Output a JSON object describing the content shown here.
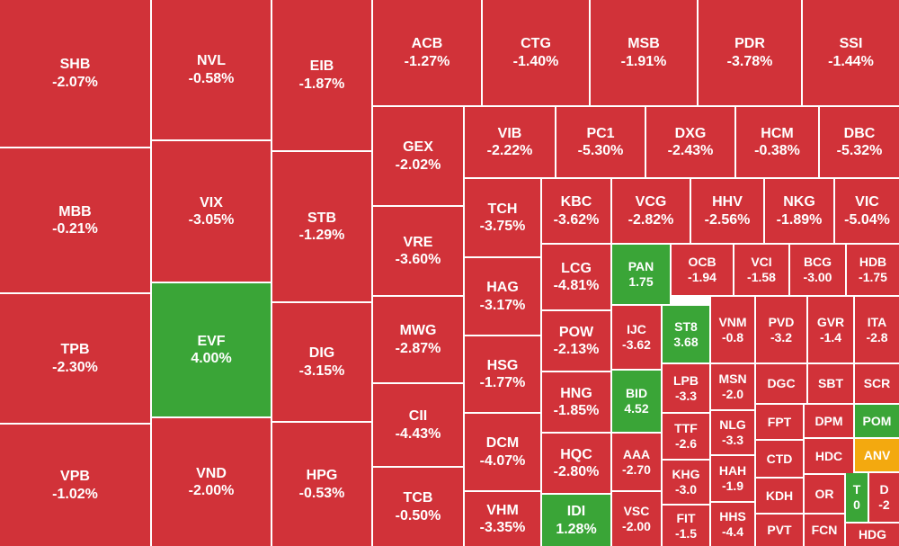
{
  "tiles": [
    {
      "ticker": "SHB",
      "change": "-2.07%"
    },
    {
      "ticker": "MBB",
      "change": "-0.21%"
    },
    {
      "ticker": "TPB",
      "change": "-2.30%"
    },
    {
      "ticker": "VPB",
      "change": "-1.02%"
    },
    {
      "ticker": "NVL",
      "change": "-0.58%"
    },
    {
      "ticker": "VIX",
      "change": "-3.05%"
    },
    {
      "ticker": "EVF",
      "change": "4.00%"
    },
    {
      "ticker": "VND",
      "change": "-2.00%"
    },
    {
      "ticker": "EIB",
      "change": "-1.87%"
    },
    {
      "ticker": "STB",
      "change": "-1.29%"
    },
    {
      "ticker": "DIG",
      "change": "-3.15%"
    },
    {
      "ticker": "HPG",
      "change": "-0.53%"
    },
    {
      "ticker": "ACB",
      "change": "-1.27%"
    },
    {
      "ticker": "CTG",
      "change": "-1.40%"
    },
    {
      "ticker": "MSB",
      "change": "-1.91%"
    },
    {
      "ticker": "PDR",
      "change": "-3.78%"
    },
    {
      "ticker": "SSI",
      "change": "-1.44%"
    },
    {
      "ticker": "GEX",
      "change": "-2.02%"
    },
    {
      "ticker": "VRE",
      "change": "-3.60%"
    },
    {
      "ticker": "MWG",
      "change": "-2.87%"
    },
    {
      "ticker": "CII",
      "change": "-4.43%"
    },
    {
      "ticker": "TCB",
      "change": "-0.50%"
    },
    {
      "ticker": "VIB",
      "change": "-2.22%"
    },
    {
      "ticker": "PC1",
      "change": "-5.30%"
    },
    {
      "ticker": "DXG",
      "change": "-2.43%"
    },
    {
      "ticker": "HCM",
      "change": "-0.38%"
    },
    {
      "ticker": "DBC",
      "change": "-5.32%"
    },
    {
      "ticker": "TCH",
      "change": "-3.75%"
    },
    {
      "ticker": "KBC",
      "change": "-3.62%"
    },
    {
      "ticker": "VCG",
      "change": "-2.82%"
    },
    {
      "ticker": "HHV",
      "change": "-2.56%"
    },
    {
      "ticker": "NKG",
      "change": "-1.89%"
    },
    {
      "ticker": "VIC",
      "change": "-5.04%"
    },
    {
      "ticker": "HAG",
      "change": "-3.17%"
    },
    {
      "ticker": "HSG",
      "change": "-1.77%"
    },
    {
      "ticker": "DCM",
      "change": "-4.07%"
    },
    {
      "ticker": "VHM",
      "change": "-3.35%"
    },
    {
      "ticker": "LCG",
      "change": "-4.81%"
    },
    {
      "ticker": "POW",
      "change": "-2.13%"
    },
    {
      "ticker": "HNG",
      "change": "-1.85%"
    },
    {
      "ticker": "HQC",
      "change": "-2.80%"
    },
    {
      "ticker": "IDI",
      "change": "1.28%"
    },
    {
      "ticker": "PAN",
      "change": "1.75"
    },
    {
      "ticker": "OCB",
      "change": "-1.94"
    },
    {
      "ticker": "VCI",
      "change": "-1.58"
    },
    {
      "ticker": "BCG",
      "change": "-3.00"
    },
    {
      "ticker": "HDB",
      "change": "-1.75"
    },
    {
      "ticker": "IJC",
      "change": "-3.62"
    },
    {
      "ticker": "BID",
      "change": "4.52"
    },
    {
      "ticker": "AAA",
      "change": "-2.70"
    },
    {
      "ticker": "VSC",
      "change": "-2.00"
    },
    {
      "ticker": "ST8",
      "change": "3.68"
    },
    {
      "ticker": "LPB",
      "change": "-3.3"
    },
    {
      "ticker": "TTF",
      "change": "-2.6"
    },
    {
      "ticker": "KHG",
      "change": "-3.0"
    },
    {
      "ticker": "FIT",
      "change": "-1.5"
    },
    {
      "ticker": "VNM",
      "change": "-0.8"
    },
    {
      "ticker": "MSN",
      "change": "-2.0"
    },
    {
      "ticker": "NLG",
      "change": "-3.3"
    },
    {
      "ticker": "HAH",
      "change": "-1.9"
    },
    {
      "ticker": "HHS",
      "change": "-4.4"
    },
    {
      "ticker": "PVD",
      "change": "-3.2"
    },
    {
      "ticker": "GVR",
      "change": "-1.4"
    },
    {
      "ticker": "ITA",
      "change": "-2.8"
    },
    {
      "ticker": "DGC"
    },
    {
      "ticker": "SBT"
    },
    {
      "ticker": "SCR"
    },
    {
      "ticker": "FPT"
    },
    {
      "ticker": "DPM"
    },
    {
      "ticker": "POM"
    },
    {
      "ticker": "CTD"
    },
    {
      "ticker": "HDC"
    },
    {
      "ticker": "ANV"
    },
    {
      "ticker": "KDH"
    },
    {
      "ticker": "OR"
    },
    {
      "ticker": "T",
      "change": "0"
    },
    {
      "ticker": "D",
      "change": "-2"
    },
    {
      "ticker": "PVT"
    },
    {
      "ticker": "FCN"
    },
    {
      "ticker": "HDG"
    }
  ]
}
